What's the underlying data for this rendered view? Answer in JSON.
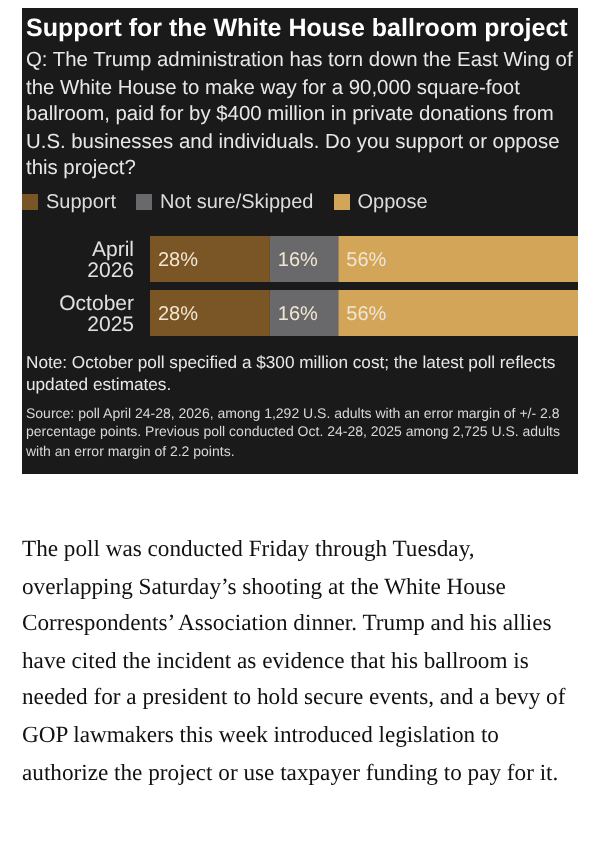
{
  "chart_data": {
    "type": "bar",
    "orientation": "horizontal",
    "stacked": true,
    "title": "Support for the White House ballroom project",
    "subtitle": "Q: The Trump administration has torn down the East Wing of the White House to make way for a 90,000 square-foot ballroom, paid for by $400 million in private donations from U.S. businesses and individuals. Do you support or oppose this project?",
    "categories": [
      "April 2026",
      "October 2025"
    ],
    "series": [
      {
        "name": "Support",
        "color": "#7a5526",
        "values": [
          28,
          28
        ],
        "value_labels": [
          "28%",
          "28%"
        ]
      },
      {
        "name": "Not sure/Skipped",
        "color": "#69696b",
        "values": [
          16,
          16
        ],
        "value_labels": [
          "16%",
          "16%"
        ]
      },
      {
        "name": "Oppose",
        "color": "#d3a558",
        "values": [
          56,
          56
        ],
        "value_labels": [
          "56%",
          "56%"
        ]
      }
    ],
    "xlim": [
      0,
      100
    ],
    "tick_labels": "y",
    "grid": false,
    "legend": "top left",
    "annotations": [
      "Note: October poll specified a $300 million cost; the latest poll reflects updated estimates.",
      "Source: poll April 24-28, 2026, among 1,292 U.S. adults with an error margin of +/- 2.8 percentage points. Previous poll conducted Oct. 24-28, 2025 among 2,725 U.S. adults with an error margin of 2.2 points.",
      "The poll was conducted Friday through Tuesday, overlapping Saturday’s shooting at the White House Correspondents’ Association dinner. Trump and his allies have cited the incident as evidence that his ballroom is needed for a president to hold secure events, and a bevy of GOP lawmakers this week introduced legislation to authorize the project or use taxpayer funding to pay for it."
    ]
  }
}
